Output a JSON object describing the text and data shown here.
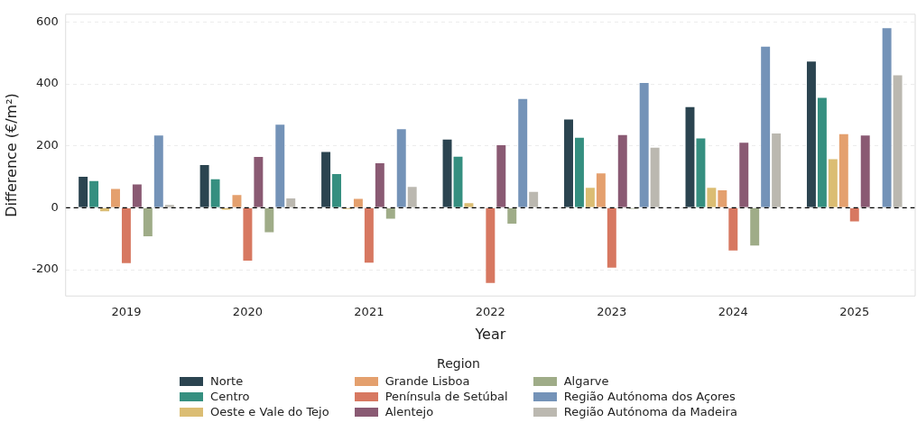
{
  "chart_data": {
    "type": "bar",
    "xlabel": "Year",
    "ylabel": "Difference (€/m²)",
    "legend_title": "Region",
    "categories": [
      "2019",
      "2020",
      "2021",
      "2022",
      "2023",
      "2024",
      "2025"
    ],
    "series": [
      {
        "name": "Norte",
        "color": "#2b4450",
        "values": [
          103,
          141,
          183,
          223,
          288,
          328,
          475
        ]
      },
      {
        "name": "Centro",
        "color": "#358f80",
        "values": [
          89,
          95,
          112,
          168,
          229,
          227,
          358
        ]
      },
      {
        "name": "Oeste e Vale do Tejo",
        "color": "#dbbd73",
        "values": [
          -14,
          -9,
          -7,
          18,
          67,
          67,
          160
        ]
      },
      {
        "name": "Grande Lisboa",
        "color": "#e4a06e",
        "values": [
          64,
          44,
          32,
          null,
          114,
          59,
          241
        ]
      },
      {
        "name": "Península de Setúbal",
        "color": "#d77861",
        "values": [
          -182,
          -174,
          -180,
          -246,
          -196,
          -141,
          -47
        ]
      },
      {
        "name": "Alentejo",
        "color": "#8a5a73",
        "values": [
          78,
          167,
          147,
          205,
          238,
          213,
          236
        ]
      },
      {
        "name": "Algarve",
        "color": "#9fac88",
        "values": [
          -95,
          -82,
          -38,
          -54,
          -5,
          -125,
          null
        ]
      },
      {
        "name": "Região Autónoma dos Açores",
        "color": "#7493b8",
        "values": [
          236,
          271,
          257,
          354,
          406,
          523,
          583
        ]
      },
      {
        "name": "Região Autónoma da Madeira",
        "color": "#bbb8b0",
        "values": [
          12,
          33,
          70,
          54,
          197,
          243,
          431
        ]
      }
    ],
    "ylim": [
      -285,
      625
    ],
    "yticks": [
      -200,
      0,
      200,
      400,
      600
    ],
    "grid": "y",
    "legend": "bottom",
    "ref_lines": [
      {
        "axis": "y",
        "value": 0,
        "color": "#000000",
        "line_style": "dashed"
      }
    ]
  }
}
